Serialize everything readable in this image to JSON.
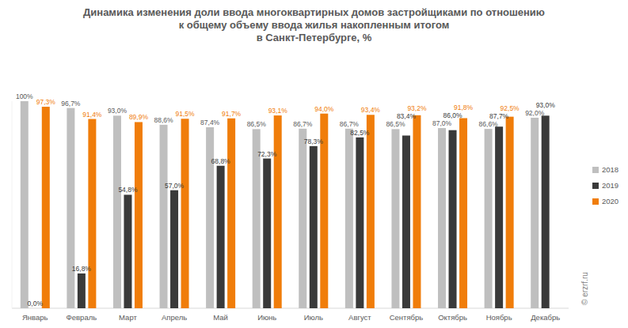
{
  "chart_data": {
    "type": "bar",
    "title": "Динамика изменения доли ввода многоквартирных домов застройщиками по отношению\nк общему объему ввода жилья накопленным итогом\nв Санкт-Петербурге, %",
    "categories": [
      "Январь",
      "Февраль",
      "Март",
      "Апрель",
      "Май",
      "Июнь",
      "Июль",
      "Август",
      "Сентябрь",
      "Октябрь",
      "Ноябрь",
      "Декабрь"
    ],
    "series": [
      {
        "name": "2018",
        "color": "#bfbfbf",
        "values": [
          100,
          96.7,
          93.0,
          88.6,
          87.4,
          86.5,
          86.7,
          86.7,
          86.5,
          87.0,
          86.6,
          92.0
        ],
        "value_labels": [
          "100%",
          "96,7%",
          "93,0%",
          "88,6%",
          "87,4%",
          "86,5%",
          "86,7%",
          "86,7%",
          "86,5%",
          "87,0%",
          "86,6%",
          "92,0%"
        ]
      },
      {
        "name": "2019",
        "color": "#3a3a3a",
        "values": [
          0.0,
          16.8,
          54.8,
          57.0,
          68.8,
          72.3,
          78.3,
          82.5,
          83.4,
          86.0,
          87.7,
          93.0
        ],
        "value_labels": [
          "0,0%",
          "16,8%",
          "54,8%",
          "57,0%",
          "68,8%",
          "72,3%",
          "78,3%",
          "82,5%",
          "83,4%",
          "86,0%",
          "87,7%",
          "93,0%"
        ]
      },
      {
        "name": "2020",
        "color": "#f07d0a",
        "values": [
          97.3,
          91.4,
          89.9,
          91.5,
          91.7,
          93.1,
          94.0,
          93.4,
          93.2,
          91.8,
          92.5,
          null
        ],
        "value_labels": [
          "97,3%",
          "91,4%",
          "89,9%",
          "91,5%",
          "91,7%",
          "93,1%",
          "94,0%",
          "93,4%",
          "93,2%",
          "91,8%",
          "92,5%",
          null
        ]
      }
    ],
    "ylim": [
      0,
      100
    ],
    "tick_labels": "x",
    "grid": false,
    "legend": "right",
    "data_labels": true,
    "annotations": [
      {
        "text": "© erzrf.ru"
      }
    ]
  }
}
